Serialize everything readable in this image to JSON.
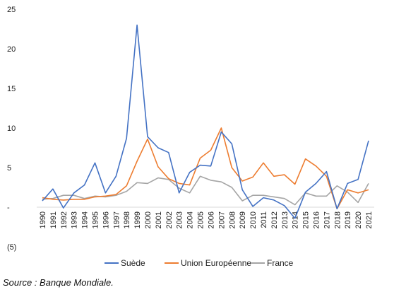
{
  "chart_data": {
    "type": "line",
    "title": "",
    "xlabel": "",
    "ylabel": "",
    "ylim": [
      -5,
      25
    ],
    "y_ticks": [
      25,
      20,
      15,
      10,
      5,
      0,
      -5
    ],
    "y_tick_labels": [
      "25",
      "20",
      "15",
      "10",
      "5",
      "-",
      "(5)"
    ],
    "grid": false,
    "legend_position": "bottom",
    "categories": [
      "1990",
      "1991",
      "1992",
      "1993",
      "1994",
      "1995",
      "1996",
      "1997",
      "1998",
      "1999",
      "2000",
      "2001",
      "2002",
      "2003",
      "2004",
      "2005",
      "2006",
      "2007",
      "2008",
      "2009",
      "2010",
      "2011",
      "2012",
      "2013",
      "2014",
      "2015",
      "2016",
      "2017",
      "2018",
      "2019",
      "2020",
      "2021"
    ],
    "series": [
      {
        "name": "Suède",
        "color": "#4472C4",
        "values": [
          0.8,
          2.3,
          -0.1,
          1.8,
          2.8,
          5.6,
          1.8,
          3.9,
          8.7,
          23.0,
          8.9,
          7.5,
          6.9,
          1.8,
          4.4,
          5.3,
          5.2,
          9.5,
          8.0,
          2.2,
          0.1,
          1.2,
          0.9,
          0.2,
          -1.4,
          1.9,
          3.0,
          4.5,
          -0.2,
          3.0,
          3.5,
          8.4
        ]
      },
      {
        "name": "Union Européenne",
        "color": "#ED7D31",
        "values": [
          1.2,
          1.0,
          0.9,
          1.0,
          1.0,
          1.3,
          1.4,
          1.6,
          2.7,
          5.8,
          8.6,
          5.1,
          3.6,
          3.0,
          2.8,
          6.2,
          7.2,
          10.0,
          5.0,
          3.3,
          3.8,
          5.6,
          3.9,
          4.1,
          2.9,
          6.1,
          5.2,
          3.9,
          -0.2,
          2.2,
          1.8,
          2.2
        ]
      },
      {
        "name": "France",
        "color": "#A5A5A5",
        "values": [
          1.0,
          1.1,
          1.5,
          1.5,
          1.1,
          1.4,
          1.3,
          1.5,
          2.0,
          3.1,
          3.0,
          3.7,
          3.5,
          2.4,
          1.8,
          3.9,
          3.4,
          3.2,
          2.5,
          0.8,
          1.5,
          1.5,
          1.3,
          1.1,
          0.3,
          1.8,
          1.4,
          1.4,
          2.7,
          1.9,
          0.6,
          3.0
        ]
      }
    ]
  },
  "source_text": "Source : Banque Mondiale."
}
